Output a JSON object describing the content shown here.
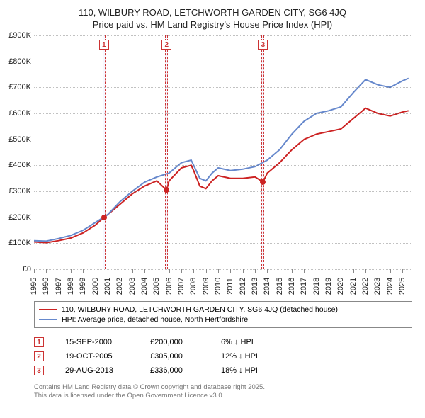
{
  "title_line1": "110, WILBURY ROAD, LETCHWORTH GARDEN CITY, SG6 4JQ",
  "title_line2": "Price paid vs. HM Land Registry's House Price Index (HPI)",
  "chart": {
    "type": "line",
    "ylim": [
      0,
      900000
    ],
    "ytick_step": 100000,
    "yticks": [
      "£0",
      "£100K",
      "£200K",
      "£300K",
      "£400K",
      "£500K",
      "£600K",
      "£700K",
      "£800K",
      "£900K"
    ],
    "x_start_year": 1995,
    "x_end_year": 2025.8,
    "xticks_years": [
      1995,
      1996,
      1997,
      1998,
      1999,
      2000,
      2001,
      2002,
      2003,
      2004,
      2005,
      2006,
      2007,
      2008,
      2009,
      2010,
      2011,
      2012,
      2013,
      2014,
      2015,
      2016,
      2017,
      2018,
      2019,
      2020,
      2021,
      2022,
      2023,
      2024,
      2025
    ],
    "grid_color": "#666666",
    "background_color": "#ffffff",
    "series": [
      {
        "name": "property",
        "color": "#cc2222",
        "width": 2,
        "points": [
          [
            1995,
            105000
          ],
          [
            1996,
            102000
          ],
          [
            1997,
            110000
          ],
          [
            1998,
            120000
          ],
          [
            1999,
            140000
          ],
          [
            2000,
            170000
          ],
          [
            2000.7,
            200000
          ],
          [
            2001,
            210000
          ],
          [
            2002,
            250000
          ],
          [
            2003,
            290000
          ],
          [
            2004,
            320000
          ],
          [
            2005,
            340000
          ],
          [
            2005.8,
            305000
          ],
          [
            2006,
            340000
          ],
          [
            2007,
            390000
          ],
          [
            2007.8,
            400000
          ],
          [
            2008,
            380000
          ],
          [
            2008.5,
            320000
          ],
          [
            2009,
            310000
          ],
          [
            2009.5,
            340000
          ],
          [
            2010,
            360000
          ],
          [
            2011,
            350000
          ],
          [
            2012,
            350000
          ],
          [
            2013,
            355000
          ],
          [
            2013.65,
            336000
          ],
          [
            2014,
            370000
          ],
          [
            2015,
            410000
          ],
          [
            2016,
            460000
          ],
          [
            2017,
            500000
          ],
          [
            2018,
            520000
          ],
          [
            2019,
            530000
          ],
          [
            2020,
            540000
          ],
          [
            2021,
            580000
          ],
          [
            2022,
            620000
          ],
          [
            2023,
            600000
          ],
          [
            2024,
            590000
          ],
          [
            2025,
            605000
          ],
          [
            2025.5,
            610000
          ]
        ]
      },
      {
        "name": "hpi",
        "color": "#6688cc",
        "width": 2,
        "points": [
          [
            1995,
            110000
          ],
          [
            1996,
            108000
          ],
          [
            1997,
            118000
          ],
          [
            1998,
            130000
          ],
          [
            1999,
            150000
          ],
          [
            2000,
            180000
          ],
          [
            2001,
            210000
          ],
          [
            2002,
            260000
          ],
          [
            2003,
            300000
          ],
          [
            2004,
            335000
          ],
          [
            2005,
            355000
          ],
          [
            2006,
            370000
          ],
          [
            2007,
            410000
          ],
          [
            2007.8,
            420000
          ],
          [
            2008,
            400000
          ],
          [
            2008.5,
            350000
          ],
          [
            2009,
            340000
          ],
          [
            2009.5,
            370000
          ],
          [
            2010,
            390000
          ],
          [
            2011,
            380000
          ],
          [
            2012,
            385000
          ],
          [
            2013,
            395000
          ],
          [
            2014,
            420000
          ],
          [
            2015,
            460000
          ],
          [
            2016,
            520000
          ],
          [
            2017,
            570000
          ],
          [
            2018,
            600000
          ],
          [
            2019,
            610000
          ],
          [
            2020,
            625000
          ],
          [
            2021,
            680000
          ],
          [
            2022,
            730000
          ],
          [
            2023,
            710000
          ],
          [
            2024,
            700000
          ],
          [
            2025,
            725000
          ],
          [
            2025.5,
            735000
          ]
        ]
      }
    ],
    "sale_markers": [
      {
        "num": "1",
        "year": 2000.7,
        "value": 200000
      },
      {
        "num": "2",
        "year": 2005.8,
        "value": 305000
      },
      {
        "num": "3",
        "year": 2013.65,
        "value": 336000
      }
    ]
  },
  "legend": {
    "items": [
      {
        "color": "#cc2222",
        "label": "110, WILBURY ROAD, LETCHWORTH GARDEN CITY, SG6 4JQ (detached house)"
      },
      {
        "color": "#6688cc",
        "label": "HPI: Average price, detached house, North Hertfordshire"
      }
    ]
  },
  "sales": [
    {
      "num": "1",
      "date": "15-SEP-2000",
      "price": "£200,000",
      "pct": "6% ↓ HPI"
    },
    {
      "num": "2",
      "date": "19-OCT-2005",
      "price": "£305,000",
      "pct": "12% ↓ HPI"
    },
    {
      "num": "3",
      "date": "29-AUG-2013",
      "price": "£336,000",
      "pct": "18% ↓ HPI"
    }
  ],
  "footer_line1": "Contains HM Land Registry data © Crown copyright and database right 2025.",
  "footer_line2": "This data is licensed under the Open Government Licence v3.0."
}
